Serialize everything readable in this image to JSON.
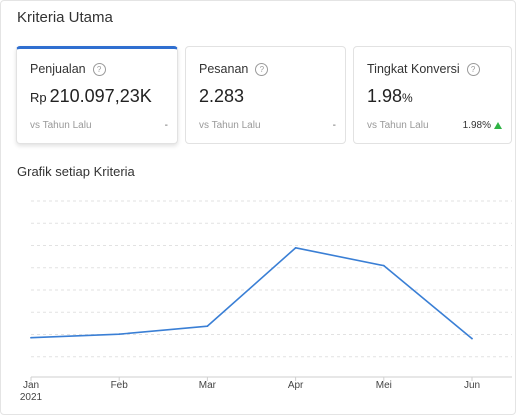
{
  "header": {
    "title": "Kriteria Utama"
  },
  "cards": [
    {
      "label": "Penjualan",
      "prefix": "Rp",
      "value": "210.097,23K",
      "suffix": "",
      "compare": "vs Tahun Lalu",
      "change": "-"
    },
    {
      "label": "Pesanan",
      "prefix": "",
      "value": "2.283",
      "suffix": "",
      "compare": "vs Tahun Lalu",
      "change": "-"
    },
    {
      "label": "Tingkat Konversi",
      "prefix": "",
      "value": "1.98",
      "suffix": "%",
      "compare": "vs Tahun Lalu",
      "change": "1.98%"
    }
  ],
  "chart_section": {
    "title": "Grafik setiap Kriteria"
  },
  "chart_data": {
    "type": "line",
    "title": "",
    "xlabel": "",
    "ylabel": "",
    "categories": [
      "Jan",
      "Feb",
      "Mar",
      "Apr",
      "Mei",
      "Jun"
    ],
    "year_label": "2021",
    "series": [
      {
        "values": [
          21.5,
          23.5,
          28,
          72,
          62,
          21
        ],
        "color": "#3a7fd5"
      }
    ],
    "ylim": [
      0,
      100
    ],
    "grid": true,
    "y_ticks_shown": false
  },
  "colors": {
    "accent": "#2f6fd0",
    "line": "#3a7fd5",
    "positive": "#2fb344"
  },
  "icons": {
    "help": "help-circle-icon",
    "change_up": "arrow-up-icon"
  }
}
